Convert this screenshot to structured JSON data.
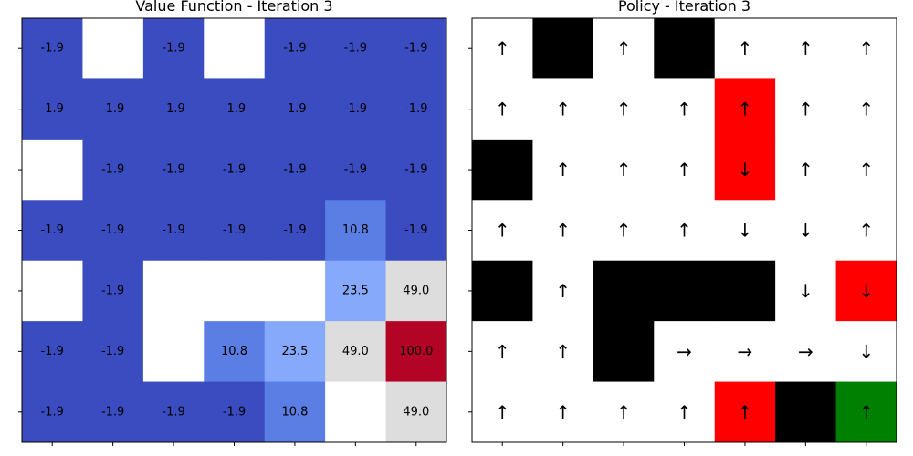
{
  "colors": {
    "deep_blue": "#3b4cc0",
    "mid_blue": "#5b7ee5",
    "light_blue": "#87a9fc",
    "light_gray": "#dddddd",
    "dark_red": "#b40426",
    "wall": "#000000",
    "trap": "#ff0000",
    "goal": "#008000",
    "empty": "#ffffff"
  },
  "chart_data": [
    {
      "type": "heatmap",
      "title": "Value Function - Iteration 3",
      "rows": 7,
      "cols": 7,
      "tick_labels_shown": false,
      "values": [
        [
          -1.9,
          null,
          -1.9,
          null,
          -1.9,
          -1.9,
          -1.9
        ],
        [
          -1.9,
          -1.9,
          -1.9,
          -1.9,
          -1.9,
          -1.9,
          -1.9
        ],
        [
          null,
          -1.9,
          -1.9,
          -1.9,
          -1.9,
          -1.9,
          -1.9
        ],
        [
          -1.9,
          -1.9,
          -1.9,
          -1.9,
          -1.9,
          10.8,
          -1.9
        ],
        [
          null,
          -1.9,
          null,
          null,
          null,
          23.5,
          49.0
        ],
        [
          -1.9,
          -1.9,
          null,
          10.8,
          23.5,
          49.0,
          100.0
        ],
        [
          -1.9,
          -1.9,
          -1.9,
          -1.9,
          10.8,
          null,
          49.0
        ]
      ],
      "value_labels": [
        [
          "-1.9",
          "",
          "-1.9",
          "",
          "-1.9",
          "-1.9",
          "-1.9"
        ],
        [
          "-1.9",
          "-1.9",
          "-1.9",
          "-1.9",
          "-1.9",
          "-1.9",
          "-1.9"
        ],
        [
          "",
          "-1.9",
          "-1.9",
          "-1.9",
          "-1.9",
          "-1.9",
          "-1.9"
        ],
        [
          "-1.9",
          "-1.9",
          "-1.9",
          "-1.9",
          "-1.9",
          "10.8",
          "-1.9"
        ],
        [
          "",
          "-1.9",
          "",
          "",
          "",
          "23.5",
          "49.0"
        ],
        [
          "-1.9",
          "-1.9",
          "",
          "10.8",
          "23.5",
          "49.0",
          "100.0"
        ],
        [
          "-1.9",
          "-1.9",
          "-1.9",
          "-1.9",
          "10.8",
          "",
          "49.0"
        ]
      ]
    },
    {
      "type": "heatmap",
      "title": "Policy - Iteration 3",
      "rows": 7,
      "cols": 7,
      "tick_labels_shown": false,
      "cell_types": [
        [
          "empty",
          "wall",
          "empty",
          "wall",
          "empty",
          "empty",
          "empty"
        ],
        [
          "empty",
          "empty",
          "empty",
          "empty",
          "trap",
          "empty",
          "empty"
        ],
        [
          "wall",
          "empty",
          "empty",
          "empty",
          "trap",
          "empty",
          "empty"
        ],
        [
          "empty",
          "empty",
          "empty",
          "empty",
          "empty",
          "empty",
          "empty"
        ],
        [
          "wall",
          "empty",
          "wall",
          "wall",
          "wall",
          "empty",
          "trap"
        ],
        [
          "empty",
          "empty",
          "wall",
          "empty",
          "empty",
          "empty",
          "empty"
        ],
        [
          "empty",
          "empty",
          "empty",
          "empty",
          "trap",
          "wall",
          "goal"
        ]
      ],
      "arrows": [
        [
          "↑",
          "",
          "↑",
          "",
          "↑",
          "↑",
          "↑"
        ],
        [
          "↑",
          "↑",
          "↑",
          "↑",
          "↑",
          "↑",
          "↑"
        ],
        [
          "",
          "↑",
          "↑",
          "↑",
          "↓",
          "↑",
          "↑"
        ],
        [
          "↑",
          "↑",
          "↑",
          "↑",
          "↓",
          "↓",
          "↑"
        ],
        [
          "",
          "↑",
          "",
          "",
          "",
          "↓",
          "↓"
        ],
        [
          "↑",
          "↑",
          "",
          "→",
          "→",
          "→",
          "↓"
        ],
        [
          "↑",
          "↑",
          "↑",
          "↑",
          "↑",
          "",
          "↑"
        ]
      ]
    }
  ]
}
